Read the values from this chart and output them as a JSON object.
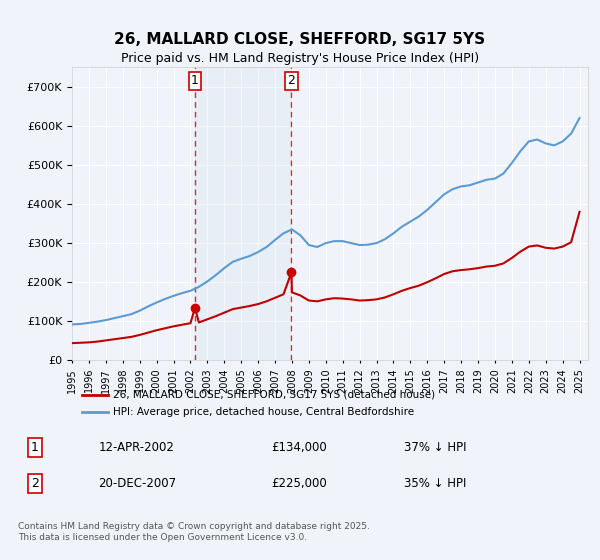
{
  "title": "26, MALLARD CLOSE, SHEFFORD, SG17 5YS",
  "subtitle": "Price paid vs. HM Land Registry's House Price Index (HPI)",
  "background_color": "#f0f4fa",
  "plot_background": "#f0f4fa",
  "legend_line1": "26, MALLARD CLOSE, SHEFFORD, SG17 5YS (detached house)",
  "legend_line2": "HPI: Average price, detached house, Central Bedfordshire",
  "sale1_date": "12-APR-2002",
  "sale1_price": "£134,000",
  "sale1_note": "37% ↓ HPI",
  "sale2_date": "20-DEC-2007",
  "sale2_price": "£225,000",
  "sale2_note": "35% ↓ HPI",
  "footer": "Contains HM Land Registry data © Crown copyright and database right 2025.\nThis data is licensed under the Open Government Licence v3.0.",
  "hpi_color": "#5b9bd5",
  "price_color": "#c00000",
  "vline_color": "#cc0000",
  "marker_color": "#cc0000",
  "sale1_x": 2002.27,
  "sale2_x": 2007.97,
  "ylim_max": 750000,
  "ylim_min": 0,
  "xlim_min": 1995,
  "xlim_max": 2025.5
}
